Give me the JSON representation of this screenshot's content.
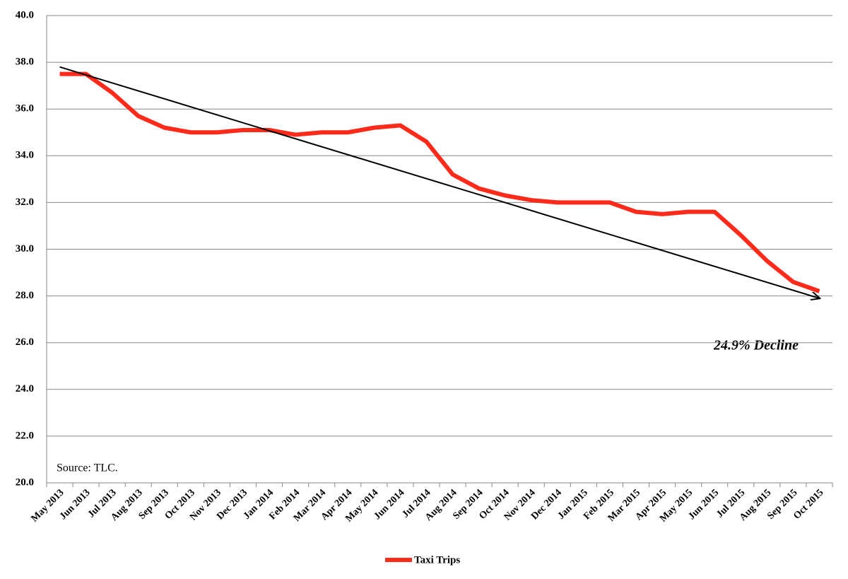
{
  "chart_data": {
    "type": "line",
    "categories": [
      "May 2013",
      "Jun 2013",
      "Jul 2013",
      "Aug 2013",
      "Sep 2013",
      "Oct 2013",
      "Nov 2013",
      "Dec 2013",
      "Jan 2014",
      "Feb 2014",
      "Mar 2014",
      "Apr 2014",
      "May 2014",
      "Jun 2014",
      "Jul 2014",
      "Aug 2014",
      "Sep 2014",
      "Oct 2014",
      "Nov 2014",
      "Dec 2014",
      "Jan 2015",
      "Feb 2015",
      "Mar 2015",
      "Apr 2015",
      "May 2015",
      "Jun 2015",
      "Jul 2015",
      "Aug 2015",
      "Sep 2015",
      "Oct 2015"
    ],
    "series": [
      {
        "name": "Taxi Trips",
        "color": "#ff2a1a",
        "values": [
          37.5,
          37.5,
          36.7,
          35.7,
          35.2,
          35.0,
          35.0,
          35.1,
          35.1,
          34.9,
          35.0,
          35.0,
          35.2,
          35.3,
          34.6,
          33.2,
          32.6,
          32.3,
          32.1,
          32.0,
          32.0,
          32.0,
          31.6,
          31.5,
          31.6,
          31.6,
          30.6,
          29.5,
          28.6,
          28.2
        ]
      }
    ],
    "trend": [
      37.8,
      27.9
    ],
    "trend_color": "#000000",
    "annotations": [
      "24.9% Decline",
      "Source: TLC."
    ],
    "ylim": [
      20,
      40
    ],
    "yticks": [
      {
        "value": 20,
        "label": "20.0"
      },
      {
        "value": 22,
        "label": "22.0"
      },
      {
        "value": 24,
        "label": "24.0"
      },
      {
        "value": 26,
        "label": "26.0"
      },
      {
        "value": 28,
        "label": "28.0"
      },
      {
        "value": 30,
        "label": "30.0"
      },
      {
        "value": 32,
        "label": "32.0"
      },
      {
        "value": 34,
        "label": "34.0"
      },
      {
        "value": 36,
        "label": "36.0"
      },
      {
        "value": 38,
        "label": "38.0"
      },
      {
        "value": 40,
        "label": "40.0"
      }
    ],
    "grid": true,
    "legend": "bottom"
  }
}
